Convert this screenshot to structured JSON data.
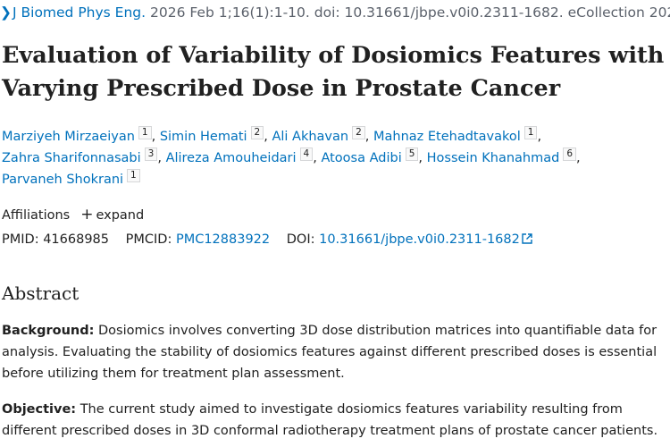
{
  "citation": {
    "journal": "J Biomed Phys Eng.",
    "rest": " 2026 Feb 1;16(1):1-10. doi: 10.31661/jbpe.v0i0.2311-1682. eCollection 2026 Feb."
  },
  "title": "Evaluation of Variability of Dosiomics Features with Varying Prescribed Dose in Prostate Cancer",
  "authors": [
    {
      "name": "Marziyeh Mirzaeiyan",
      "aff": "1",
      "sep": ","
    },
    {
      "name": "Simin Hemati",
      "aff": "2",
      "sep": ","
    },
    {
      "name": "Ali Akhavan",
      "aff": "2",
      "sep": ","
    },
    {
      "name": "Mahnaz Etehadtavakol",
      "aff": "1",
      "sep": ","
    },
    {
      "name": "Zahra Sharifonnasabi",
      "aff": "3",
      "sep": ","
    },
    {
      "name": "Alireza Amouheidari",
      "aff": "4",
      "sep": ","
    },
    {
      "name": "Atoosa Adibi",
      "aff": "5",
      "sep": ","
    },
    {
      "name": "Hossein Khanahmad",
      "aff": "6",
      "sep": ","
    },
    {
      "name": "Parvaneh Shokrani",
      "aff": "1",
      "sep": ""
    }
  ],
  "affiliations": {
    "label": "Affiliations",
    "expand": "expand"
  },
  "ids": {
    "pmid_label": "PMID:",
    "pmid": "41668985",
    "pmcid_label": "PMCID:",
    "pmcid": "PMC12883922",
    "doi_label": "DOI:",
    "doi": "10.31661/jbpe.v0i0.2311-1682"
  },
  "abstract": {
    "heading": "Abstract",
    "background_label": "Background:",
    "background_text": " Dosiomics involves converting 3D dose distribution matrices into quantifiable data for analysis. Evaluating the stability of dosiomics features against different prescribed doses is essential before utilizing them for treatment plan assessment.",
    "objective_label": "Objective:",
    "objective_text": " The current study aimed to investigate dosiomics features variability resulting from different prescribed doses in 3D conformal radiotherapy treatment plans of prostate cancer patients."
  },
  "colors": {
    "link": "#0071bc",
    "text": "#212121",
    "muted": "#5b616b"
  }
}
